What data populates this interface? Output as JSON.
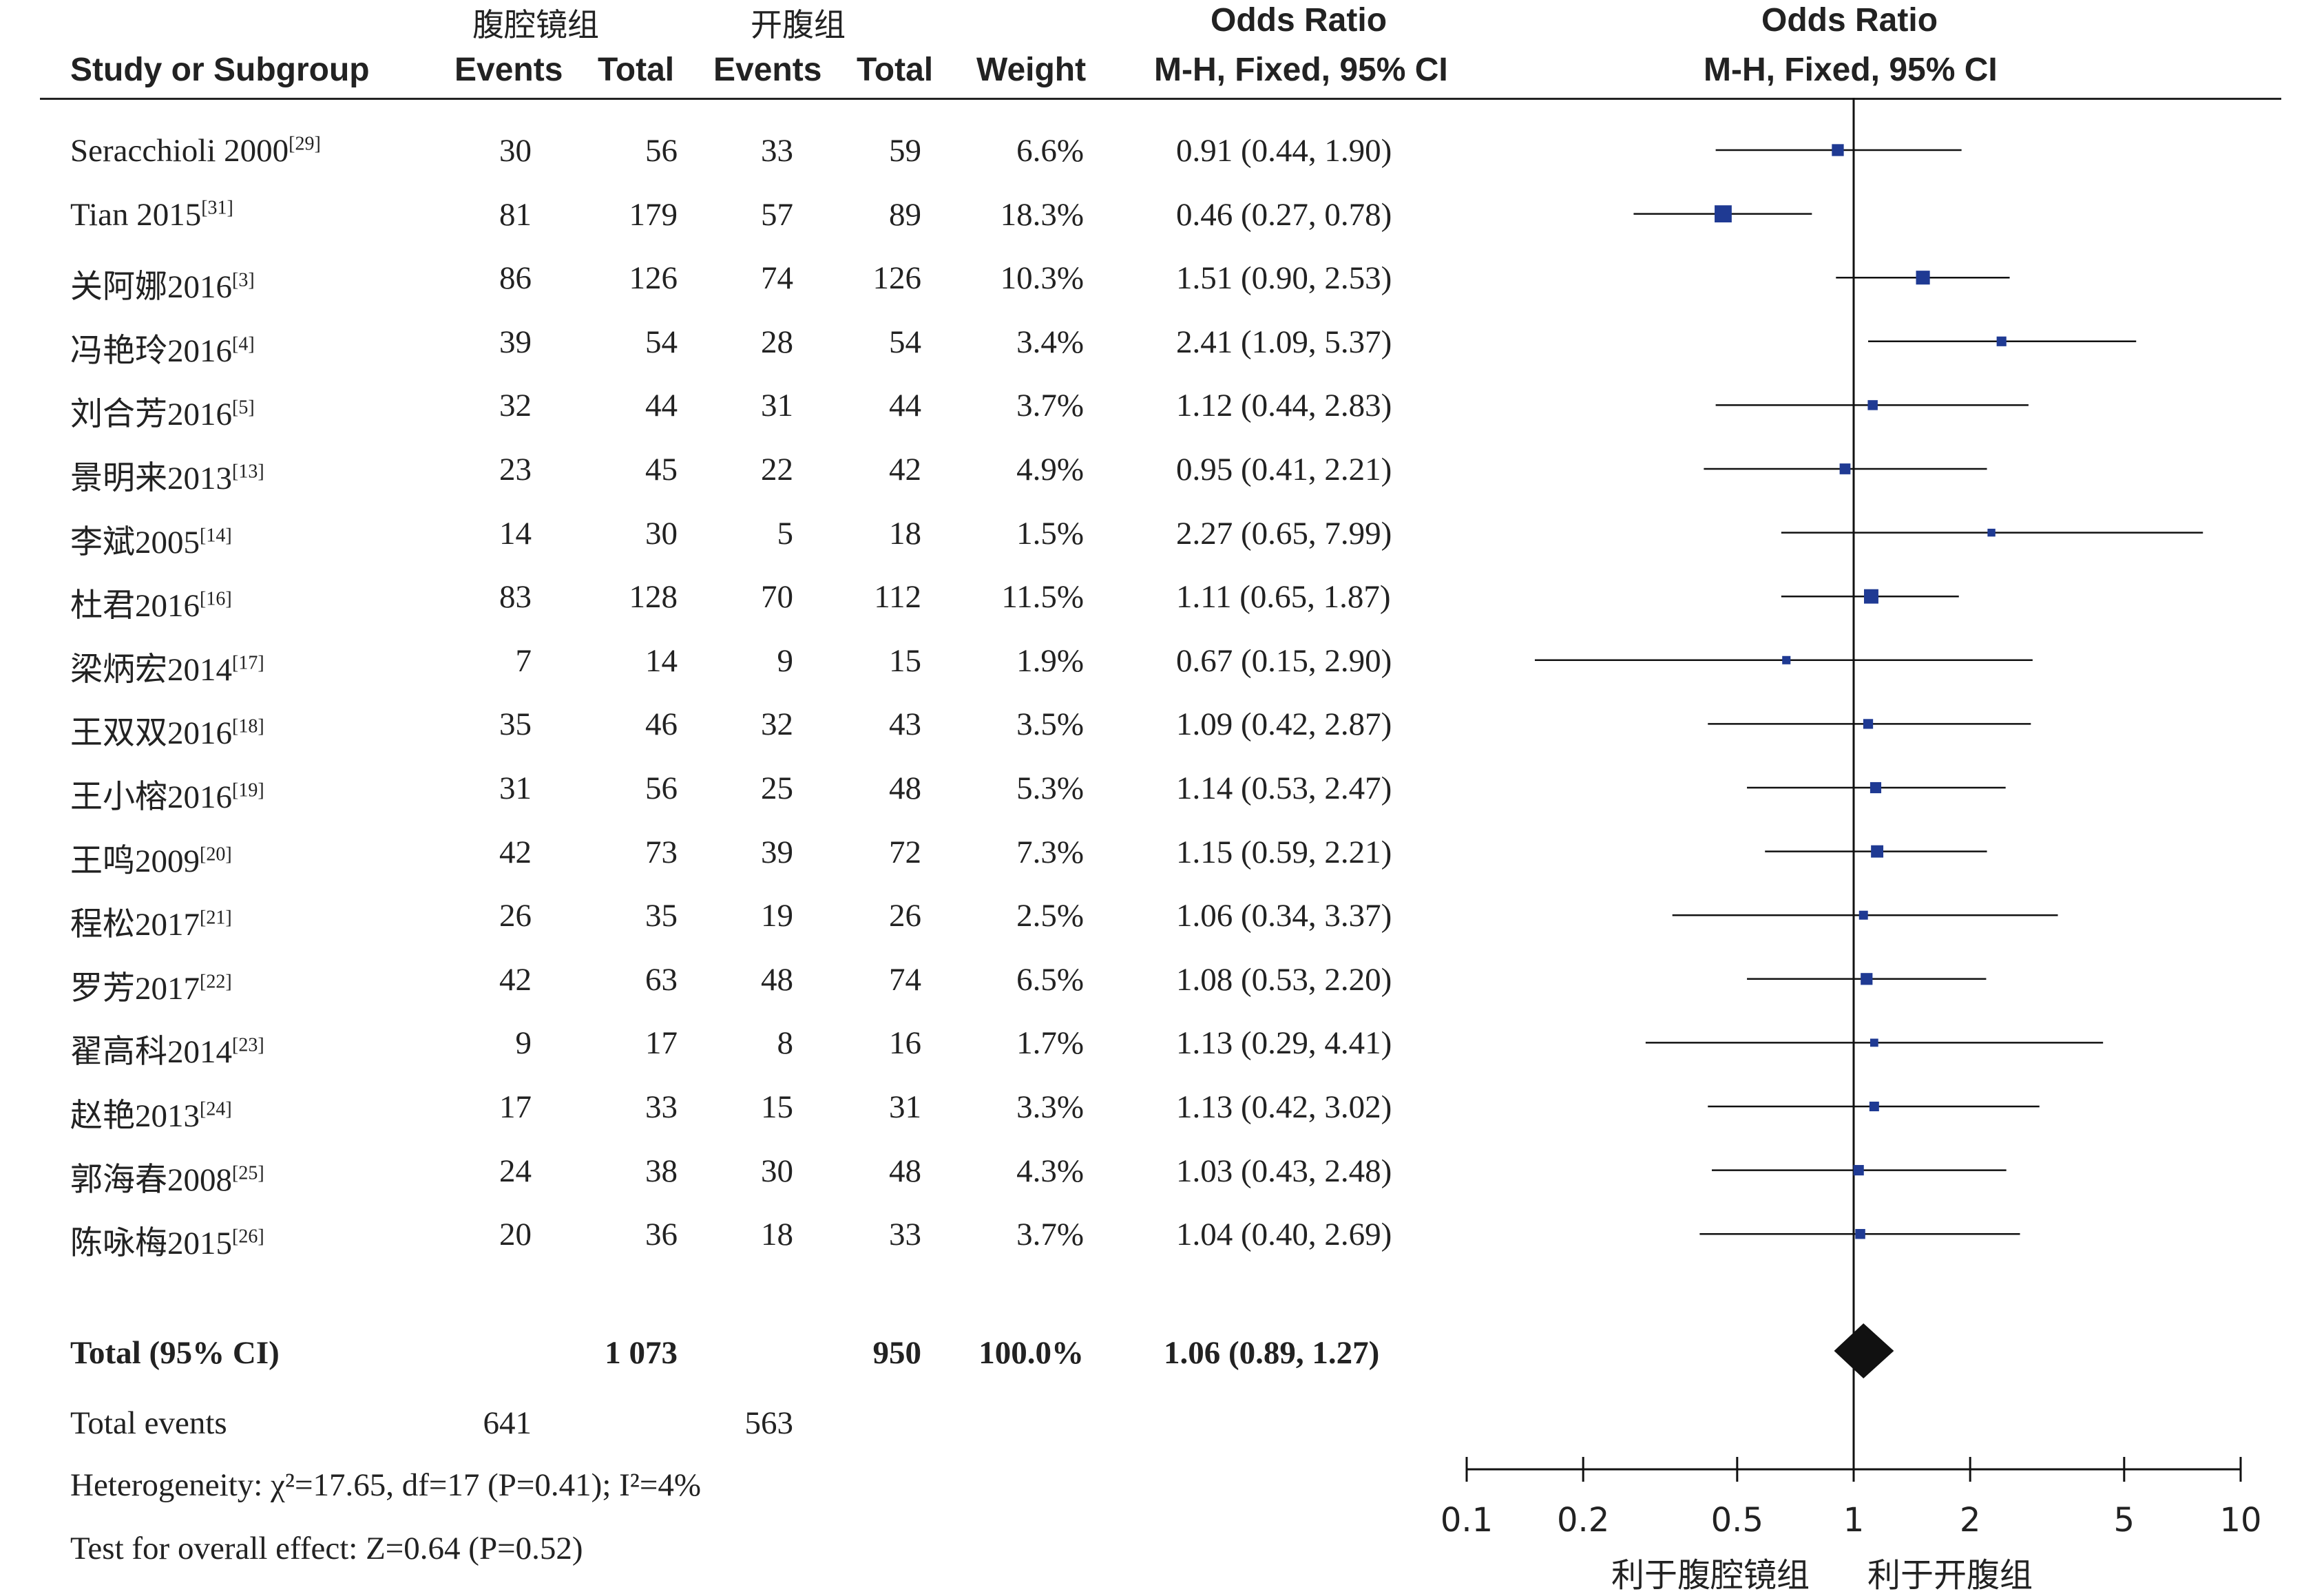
{
  "header": {
    "group1": "腹腔镜组",
    "group2": "开腹组",
    "study_col": "Study or Subgroup",
    "events1": "Events",
    "total1": "Total",
    "events2": "Events",
    "total2": "Total",
    "weight": "Weight",
    "or_title": "Odds Ratio",
    "or_method": "M-H, Fixed, 95% CI",
    "plot_title": "Odds Ratio",
    "plot_method": "M-H, Fixed, 95% CI"
  },
  "chart_data": {
    "type": "forest",
    "x_scale": "log",
    "xlim": [
      0.1,
      10
    ],
    "ticks": [
      "0.1",
      "0.2",
      "0.5",
      "1",
      "2",
      "5",
      "10"
    ],
    "xlabel_left": "利于腹腔镜组",
    "xlabel_right": "利于开腹组",
    "studies": [
      {
        "name": "Seracchioli 2000",
        "ref": "[29]",
        "e1": "30",
        "t1": "56",
        "e2": "33",
        "t2": "59",
        "weight": "6.6%",
        "ci_text": "0.91 (0.44, 1.90)",
        "or": 0.91,
        "lo": 0.44,
        "hi": 1.9,
        "w": 6.6
      },
      {
        "name": "Tian 2015",
        "ref": "[31]",
        "e1": "81",
        "t1": "179",
        "e2": "57",
        "t2": "89",
        "weight": "18.3%",
        "ci_text": "0.46 (0.27, 0.78)",
        "or": 0.46,
        "lo": 0.27,
        "hi": 0.78,
        "w": 18.3
      },
      {
        "name": "关阿娜2016",
        "ref": "[3]",
        "e1": "86",
        "t1": "126",
        "e2": "74",
        "t2": "126",
        "weight": "10.3%",
        "ci_text": "1.51 (0.90, 2.53)",
        "or": 1.51,
        "lo": 0.9,
        "hi": 2.53,
        "w": 10.3
      },
      {
        "name": "冯艳玲2016",
        "ref": "[4]",
        "e1": "39",
        "t1": "54",
        "e2": "28",
        "t2": "54",
        "weight": "3.4%",
        "ci_text": "2.41 (1.09, 5.37)",
        "or": 2.41,
        "lo": 1.09,
        "hi": 5.37,
        "w": 3.4
      },
      {
        "name": "刘合芳2016",
        "ref": "[5]",
        "e1": "32",
        "t1": "44",
        "e2": "31",
        "t2": "44",
        "weight": "3.7%",
        "ci_text": "1.12 (0.44, 2.83)",
        "or": 1.12,
        "lo": 0.44,
        "hi": 2.83,
        "w": 3.7
      },
      {
        "name": "景明来2013",
        "ref": "[13]",
        "e1": "23",
        "t1": "45",
        "e2": "22",
        "t2": "42",
        "weight": "4.9%",
        "ci_text": "0.95 (0.41, 2.21)",
        "or": 0.95,
        "lo": 0.41,
        "hi": 2.21,
        "w": 4.9
      },
      {
        "name": "李斌2005",
        "ref": "[14]",
        "e1": "14",
        "t1": "30",
        "e2": "5",
        "t2": "18",
        "weight": "1.5%",
        "ci_text": "2.27 (0.65, 7.99)",
        "or": 2.27,
        "lo": 0.65,
        "hi": 7.99,
        "w": 1.5
      },
      {
        "name": "杜君2016",
        "ref": "[16]",
        "e1": "83",
        "t1": "128",
        "e2": "70",
        "t2": "112",
        "weight": "11.5%",
        "ci_text": "1.11 (0.65, 1.87)",
        "or": 1.11,
        "lo": 0.65,
        "hi": 1.87,
        "w": 11.5
      },
      {
        "name": "梁炳宏2014",
        "ref": "[17]",
        "e1": "7",
        "t1": "14",
        "e2": "9",
        "t2": "15",
        "weight": "1.9%",
        "ci_text": "0.67 (0.15, 2.90)",
        "or": 0.67,
        "lo": 0.15,
        "hi": 2.9,
        "w": 1.9
      },
      {
        "name": "王双双2016",
        "ref": "[18]",
        "e1": "35",
        "t1": "46",
        "e2": "32",
        "t2": "43",
        "weight": "3.5%",
        "ci_text": "1.09 (0.42, 2.87)",
        "or": 1.09,
        "lo": 0.42,
        "hi": 2.87,
        "w": 3.5
      },
      {
        "name": "王小榕2016",
        "ref": "[19]",
        "e1": "31",
        "t1": "56",
        "e2": "25",
        "t2": "48",
        "weight": "5.3%",
        "ci_text": "1.14 (0.53, 2.47)",
        "or": 1.14,
        "lo": 0.53,
        "hi": 2.47,
        "w": 5.3
      },
      {
        "name": "王鸣2009",
        "ref": "[20]",
        "e1": "42",
        "t1": "73",
        "e2": "39",
        "t2": "72",
        "weight": "7.3%",
        "ci_text": "1.15 (0.59, 2.21)",
        "or": 1.15,
        "lo": 0.59,
        "hi": 2.21,
        "w": 7.3
      },
      {
        "name": "程松2017",
        "ref": "[21]",
        "e1": "26",
        "t1": "35",
        "e2": "19",
        "t2": "26",
        "weight": "2.5%",
        "ci_text": "1.06 (0.34, 3.37)",
        "or": 1.06,
        "lo": 0.34,
        "hi": 3.37,
        "w": 2.5
      },
      {
        "name": "罗芳2017",
        "ref": "[22]",
        "e1": "42",
        "t1": "63",
        "e2": "48",
        "t2": "74",
        "weight": "6.5%",
        "ci_text": "1.08 (0.53, 2.20)",
        "or": 1.08,
        "lo": 0.53,
        "hi": 2.2,
        "w": 6.5
      },
      {
        "name": "翟高科2014",
        "ref": "[23]",
        "e1": "9",
        "t1": "17",
        "e2": "8",
        "t2": "16",
        "weight": "1.7%",
        "ci_text": "1.13 (0.29, 4.41)",
        "or": 1.13,
        "lo": 0.29,
        "hi": 4.41,
        "w": 1.7
      },
      {
        "name": "赵艳2013",
        "ref": "[24]",
        "e1": "17",
        "t1": "33",
        "e2": "15",
        "t2": "31",
        "weight": "3.3%",
        "ci_text": "1.13 (0.42, 3.02)",
        "or": 1.13,
        "lo": 0.42,
        "hi": 3.02,
        "w": 3.3
      },
      {
        "name": "郭海春2008",
        "ref": "[25]",
        "e1": "24",
        "t1": "38",
        "e2": "30",
        "t2": "48",
        "weight": "4.3%",
        "ci_text": "1.03 (0.43, 2.48)",
        "or": 1.03,
        "lo": 0.43,
        "hi": 2.48,
        "w": 4.3
      },
      {
        "name": "陈咏梅2015",
        "ref": "[26]",
        "e1": "20",
        "t1": "36",
        "e2": "18",
        "t2": "33",
        "weight": "3.7%",
        "ci_text": "1.04 (0.40, 2.69)",
        "or": 1.04,
        "lo": 0.4,
        "hi": 2.69,
        "w": 3.7
      }
    ],
    "total": {
      "label": "Total (95% CI)",
      "t1": "1 073",
      "t2": "950",
      "weight": "100.0%",
      "ci_text": "1.06 (0.89, 1.27)",
      "or": 1.06,
      "lo": 0.89,
      "hi": 1.27
    },
    "marker_color": "#1f3a93",
    "diamond_color": "#111111"
  },
  "footer": {
    "total_events_label": "Total events",
    "total_events_1": "641",
    "total_events_2": "563",
    "heterogeneity": "Heterogeneity: χ²=17.65, df=17 (P=0.41); I²=4%",
    "overall_effect": "Test for overall effect: Z=0.64 (P=0.52)"
  }
}
